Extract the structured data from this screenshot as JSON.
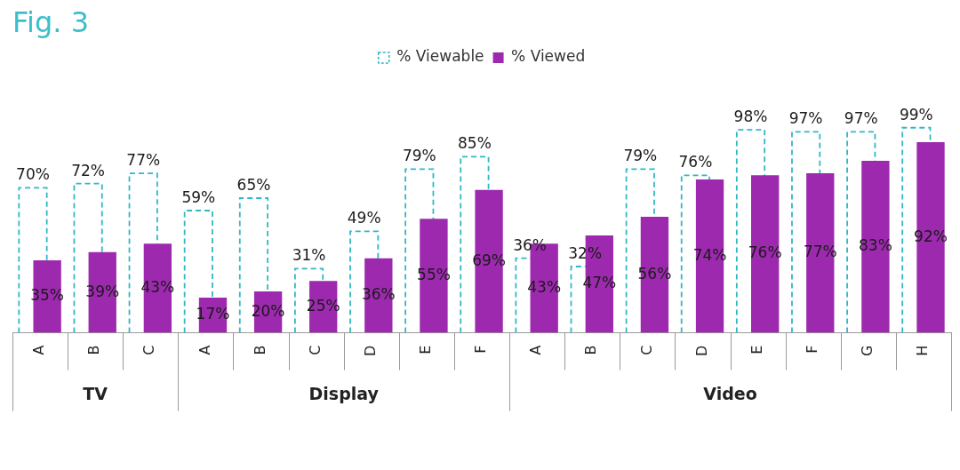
{
  "chart_data": {
    "type": "bar",
    "title": "Fig. 3",
    "categories": [
      "A",
      "B",
      "C",
      "A",
      "B",
      "C",
      "D",
      "E",
      "F",
      "A",
      "B",
      "C",
      "D",
      "E",
      "F",
      "G",
      "H"
    ],
    "groups": [
      "TV",
      "TV",
      "TV",
      "Display",
      "Display",
      "Display",
      "Display",
      "Display",
      "Display",
      "Video",
      "Video",
      "Video",
      "Video",
      "Video",
      "Video",
      "Video",
      "Video"
    ],
    "series": [
      {
        "name": "% Viewable",
        "color": "#2fb8c6",
        "line_style": "dashed",
        "values": [
          70,
          72,
          77,
          59,
          65,
          31,
          49,
          79,
          85,
          36,
          32,
          79,
          76,
          98,
          97,
          97,
          99
        ],
        "value_labels": [
          "70%",
          "72%",
          "77%",
          "59%",
          "65%",
          "31%",
          "49%",
          "79%",
          "85%",
          "36%",
          "32%",
          "79%",
          "76%",
          "98%",
          "97%",
          "97%",
          "99%"
        ]
      },
      {
        "name": "% Viewed",
        "color": "#9d2aae",
        "line_style": "solid",
        "values": [
          35,
          39,
          43,
          17,
          20,
          25,
          36,
          55,
          69,
          43,
          47,
          56,
          74,
          76,
          77,
          83,
          92
        ],
        "value_labels": [
          "35%",
          "39%",
          "43%",
          "17%",
          "20%",
          "25%",
          "36%",
          "55%",
          "69%",
          "43%",
          "47%",
          "56%",
          "74%",
          "76%",
          "77%",
          "83%",
          "92%"
        ]
      }
    ],
    "ylim": [
      0,
      100
    ],
    "grid": false,
    "legend": "top",
    "data_labels": true,
    "tick_labels": "x"
  }
}
